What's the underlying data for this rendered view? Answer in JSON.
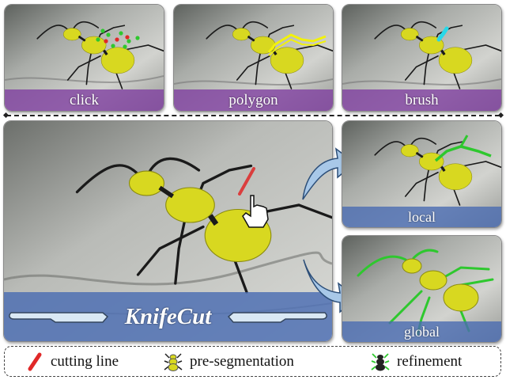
{
  "panels": {
    "click": {
      "label": "click"
    },
    "polygon": {
      "label": "polygon"
    },
    "brush": {
      "label": "brush"
    },
    "main": {
      "label": "KnifeCut"
    },
    "local": {
      "label": "local"
    },
    "global": {
      "label": "global"
    }
  },
  "legend": {
    "cutting_line": "cutting line",
    "pre_segmentation": "pre-segmentation",
    "refinement": "refinement"
  },
  "colors": {
    "segmentation": "#d8d820",
    "refinement": "#2ec82e",
    "cut": "#e02828",
    "purple_band": "#8040a0",
    "blue_band": "#4a6cb2"
  }
}
